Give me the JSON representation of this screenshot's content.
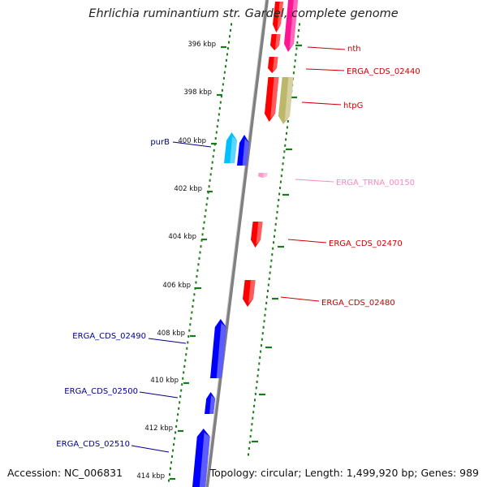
{
  "title": "Ehrlichia ruminantium str. Gardel, complete genome",
  "footer": {
    "accession": "Accession: NC_006831",
    "summary": "Topology: circular; Length: 1,499,920 bp; Genes: 989"
  },
  "colors": {
    "backbone": "#808080",
    "tick": "#1a7a1a",
    "forward_cds": "#ff0000",
    "forward_other": "#ff1493",
    "reverse_cds": "#0000ff",
    "reverse_other": "#00bfff",
    "trna": "#ff99cc",
    "htpG": "#bdb76b",
    "label_forward": "#cc0000",
    "label_reverse": "#00008b",
    "label_trna": "#ff88bb"
  },
  "ticks": [
    {
      "kbp": 396,
      "label": "396 kbp"
    },
    {
      "kbp": 398,
      "label": "398 kbp"
    },
    {
      "kbp": 400,
      "label": "400 kbp"
    },
    {
      "kbp": 402,
      "label": "402 kbp"
    },
    {
      "kbp": 404,
      "label": "404 kbp"
    },
    {
      "kbp": 406,
      "label": "406 kbp"
    },
    {
      "kbp": 408,
      "label": "408 kbp"
    },
    {
      "kbp": 410,
      "label": "410 kbp"
    },
    {
      "kbp": 412,
      "label": "412 kbp"
    },
    {
      "kbp": 414,
      "label": "414 kbp"
    }
  ],
  "genes": [
    {
      "label": "",
      "strand": "+",
      "kind": "cds"
    },
    {
      "label": "",
      "strand": "+",
      "kind": "other"
    },
    {
      "label": "nth",
      "strand": "+",
      "kind": "cds"
    },
    {
      "label": "ERGA_CDS_02440",
      "strand": "+",
      "kind": "cds"
    },
    {
      "label": "",
      "strand": "+",
      "kind": "cds"
    },
    {
      "label": "htpG",
      "strand": "+",
      "kind": "htpG"
    },
    {
      "label": "purB",
      "strand": "-",
      "kind": "other"
    },
    {
      "label": "",
      "strand": "-",
      "kind": "cds"
    },
    {
      "label": "ERGA_TRNA_00150",
      "strand": "+",
      "kind": "trna"
    },
    {
      "label": "ERGA_CDS_02470",
      "strand": "+",
      "kind": "cds"
    },
    {
      "label": "ERGA_CDS_02480",
      "strand": "+",
      "kind": "cds"
    },
    {
      "label": "ERGA_CDS_02490",
      "strand": "-",
      "kind": "cds"
    },
    {
      "label": "ERGA_CDS_02500",
      "strand": "-",
      "kind": "cds"
    },
    {
      "label": "ERGA_CDS_02510",
      "strand": "-",
      "kind": "cds"
    }
  ]
}
